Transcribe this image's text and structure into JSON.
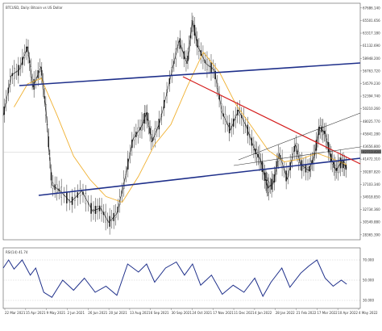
{
  "chart_data": [
    {
      "type": "candlestick",
      "title": "BTCUSD, Daily: Bitcoin vs US Dollar",
      "y_ticks": [
        "67686.140",
        "65501.656",
        "63317.180",
        "61132.690",
        "58948.200",
        "56763.720",
        "54579.230",
        "52394.740",
        "50210.260",
        "48025.770",
        "45841.280",
        "43656.800",
        "41472.310",
        "39287.820",
        "37103.340",
        "34918.850",
        "32734.360",
        "30549.880",
        "28365.390"
      ],
      "highlight_y_tick": "42713.420",
      "y_range": [
        27500,
        68500
      ],
      "x_ticks": [
        "22 Mar 2021",
        "15 Apr 2021",
        "9 May 2021",
        "2 Jun 2021",
        "26 Jun 2021",
        "20 Jul 2021",
        "13 Aug 2021",
        "6 Sep 2021",
        "30 Sep 2021",
        "24 Oct 2021",
        "17 Nov 2021",
        "11 Dec 2021",
        "4 Jan 2022",
        "28 Jan 2022",
        "21 Feb 2022",
        "17 Mar 2022",
        "10 Apr 2022",
        "4 May 2022"
      ],
      "price_path": [
        [
          0,
          49000
        ],
        [
          0.03,
          56000
        ],
        [
          0.06,
          57000
        ],
        [
          0.09,
          61000
        ],
        [
          0.11,
          54000
        ],
        [
          0.14,
          57500
        ],
        [
          0.16,
          49000
        ],
        [
          0.18,
          37000
        ],
        [
          0.21,
          36000
        ],
        [
          0.25,
          34000
        ],
        [
          0.29,
          36000
        ],
        [
          0.33,
          32500
        ],
        [
          0.36,
          33000
        ],
        [
          0.39,
          30500
        ],
        [
          0.42,
          32000
        ],
        [
          0.45,
          38000
        ],
        [
          0.48,
          45000
        ],
        [
          0.51,
          47000
        ],
        [
          0.53,
          49500
        ],
        [
          0.55,
          44500
        ],
        [
          0.58,
          48000
        ],
        [
          0.62,
          56000
        ],
        [
          0.65,
          62000
        ],
        [
          0.68,
          58000
        ],
        [
          0.7,
          65500
        ],
        [
          0.72,
          61000
        ],
        [
          0.75,
          58000
        ],
        [
          0.78,
          57000
        ],
        [
          0.81,
          49500
        ],
        [
          0.84,
          46500
        ],
        [
          0.87,
          50000
        ],
        [
          0.9,
          47000
        ],
        [
          0.93,
          43000
        ],
        [
          0.95,
          41500
        ],
        [
          0.97,
          38000
        ],
        [
          0.98,
          36500
        ],
        [
          1.0,
          37500
        ],
        [
          1.02,
          42500
        ],
        [
          1.05,
          38000
        ],
        [
          1.08,
          44000
        ],
        [
          1.1,
          40500
        ],
        [
          1.13,
          39500
        ],
        [
          1.15,
          42000
        ],
        [
          1.17,
          47000
        ],
        [
          1.19,
          46000
        ],
        [
          1.21,
          42000
        ],
        [
          1.23,
          39500
        ],
        [
          1.25,
          41000
        ],
        [
          1.27,
          40000
        ]
      ],
      "moving_average": [
        [
          0.04,
          50500
        ],
        [
          0.09,
          54500
        ],
        [
          0.14,
          55500
        ],
        [
          0.2,
          49000
        ],
        [
          0.26,
          42000
        ],
        [
          0.32,
          38000
        ],
        [
          0.38,
          35000
        ],
        [
          0.44,
          34000
        ],
        [
          0.5,
          38500
        ],
        [
          0.56,
          44000
        ],
        [
          0.62,
          47500
        ],
        [
          0.68,
          54000
        ],
        [
          0.74,
          60000
        ],
        [
          0.8,
          56500
        ],
        [
          0.86,
          51000
        ],
        [
          0.92,
          47000
        ],
        [
          0.98,
          43000
        ],
        [
          1.04,
          41000
        ],
        [
          1.1,
          41500
        ],
        [
          1.16,
          42500
        ],
        [
          1.22,
          41500
        ],
        [
          1.27,
          40500
        ]
      ]
    },
    {
      "type": "line",
      "title": "RSI(14) 41.74",
      "y_ticks": [
        "70.000",
        "50.000",
        "30.000"
      ],
      "y_range": [
        22,
        82
      ],
      "values": [
        [
          0,
          62
        ],
        [
          0.02,
          70
        ],
        [
          0.04,
          61
        ],
        [
          0.07,
          70
        ],
        [
          0.1,
          55
        ],
        [
          0.12,
          62
        ],
        [
          0.15,
          38
        ],
        [
          0.18,
          33
        ],
        [
          0.22,
          50
        ],
        [
          0.26,
          40
        ],
        [
          0.3,
          52
        ],
        [
          0.34,
          38
        ],
        [
          0.38,
          44
        ],
        [
          0.42,
          35
        ],
        [
          0.46,
          66
        ],
        [
          0.5,
          58
        ],
        [
          0.53,
          66
        ],
        [
          0.56,
          48
        ],
        [
          0.6,
          62
        ],
        [
          0.64,
          68
        ],
        [
          0.67,
          55
        ],
        [
          0.7,
          66
        ],
        [
          0.73,
          45
        ],
        [
          0.77,
          55
        ],
        [
          0.81,
          36
        ],
        [
          0.85,
          45
        ],
        [
          0.89,
          38
        ],
        [
          0.93,
          52
        ],
        [
          0.96,
          34
        ],
        [
          0.99,
          48
        ],
        [
          1.03,
          62
        ],
        [
          1.06,
          43
        ],
        [
          1.1,
          57
        ],
        [
          1.13,
          64
        ],
        [
          1.16,
          70
        ],
        [
          1.19,
          52
        ],
        [
          1.22,
          44
        ],
        [
          1.25,
          50
        ],
        [
          1.27,
          46
        ]
      ],
      "levels": [
        70,
        50,
        30
      ]
    }
  ]
}
